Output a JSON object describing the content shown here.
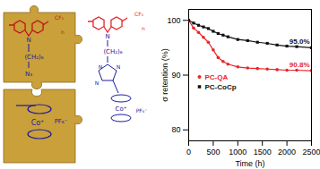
{
  "chart_data": {
    "type": "line",
    "xlabel": "Time (h)",
    "ylabel": "σ retention (%)",
    "x": [
      0,
      100,
      200,
      300,
      400,
      500,
      600,
      700,
      800,
      1000,
      1200,
      1400,
      1600,
      1800,
      2000,
      2200,
      2500
    ],
    "series": [
      {
        "name": "PC-QA",
        "color": "#e8262b",
        "marker": "circle",
        "values": [
          100,
          98.6,
          97.8,
          96.9,
          96,
          94.6,
          93.2,
          92.5,
          92,
          91.5,
          91.3,
          91.2,
          91.1,
          91,
          90.9,
          90.9,
          90.8
        ]
      },
      {
        "name": "PC-CoCp",
        "color": "#111111",
        "marker": "square",
        "values": [
          100,
          99.5,
          99.1,
          98.8,
          98.5,
          98,
          97.6,
          97.3,
          97,
          96.5,
          96.3,
          96,
          95.8,
          95.5,
          95.3,
          95.2,
          95.0
        ]
      }
    ],
    "annotations": [
      {
        "text": "95.0%",
        "series": "PC-CoCp"
      },
      {
        "text": "90.8%",
        "series": "PC-QA"
      }
    ],
    "xlim": [
      0,
      2500
    ],
    "xticks": [
      0,
      500,
      1000,
      1500,
      2000,
      2500
    ],
    "ylim": [
      78,
      102
    ],
    "yticks": [
      80,
      90,
      100
    ],
    "legend": "left"
  },
  "diagram": {
    "top_piece": [
      "CF₃",
      "n",
      "N",
      "(CH₂)₆",
      "N₃"
    ],
    "red_polymer": [
      "CF₃",
      "n",
      "N",
      "(CH₂)₆",
      "N",
      "N",
      "N",
      "Co⁺",
      "PF₆⁻"
    ],
    "bottom_piece": [
      "Co⁺",
      "PF₆⁻"
    ]
  }
}
